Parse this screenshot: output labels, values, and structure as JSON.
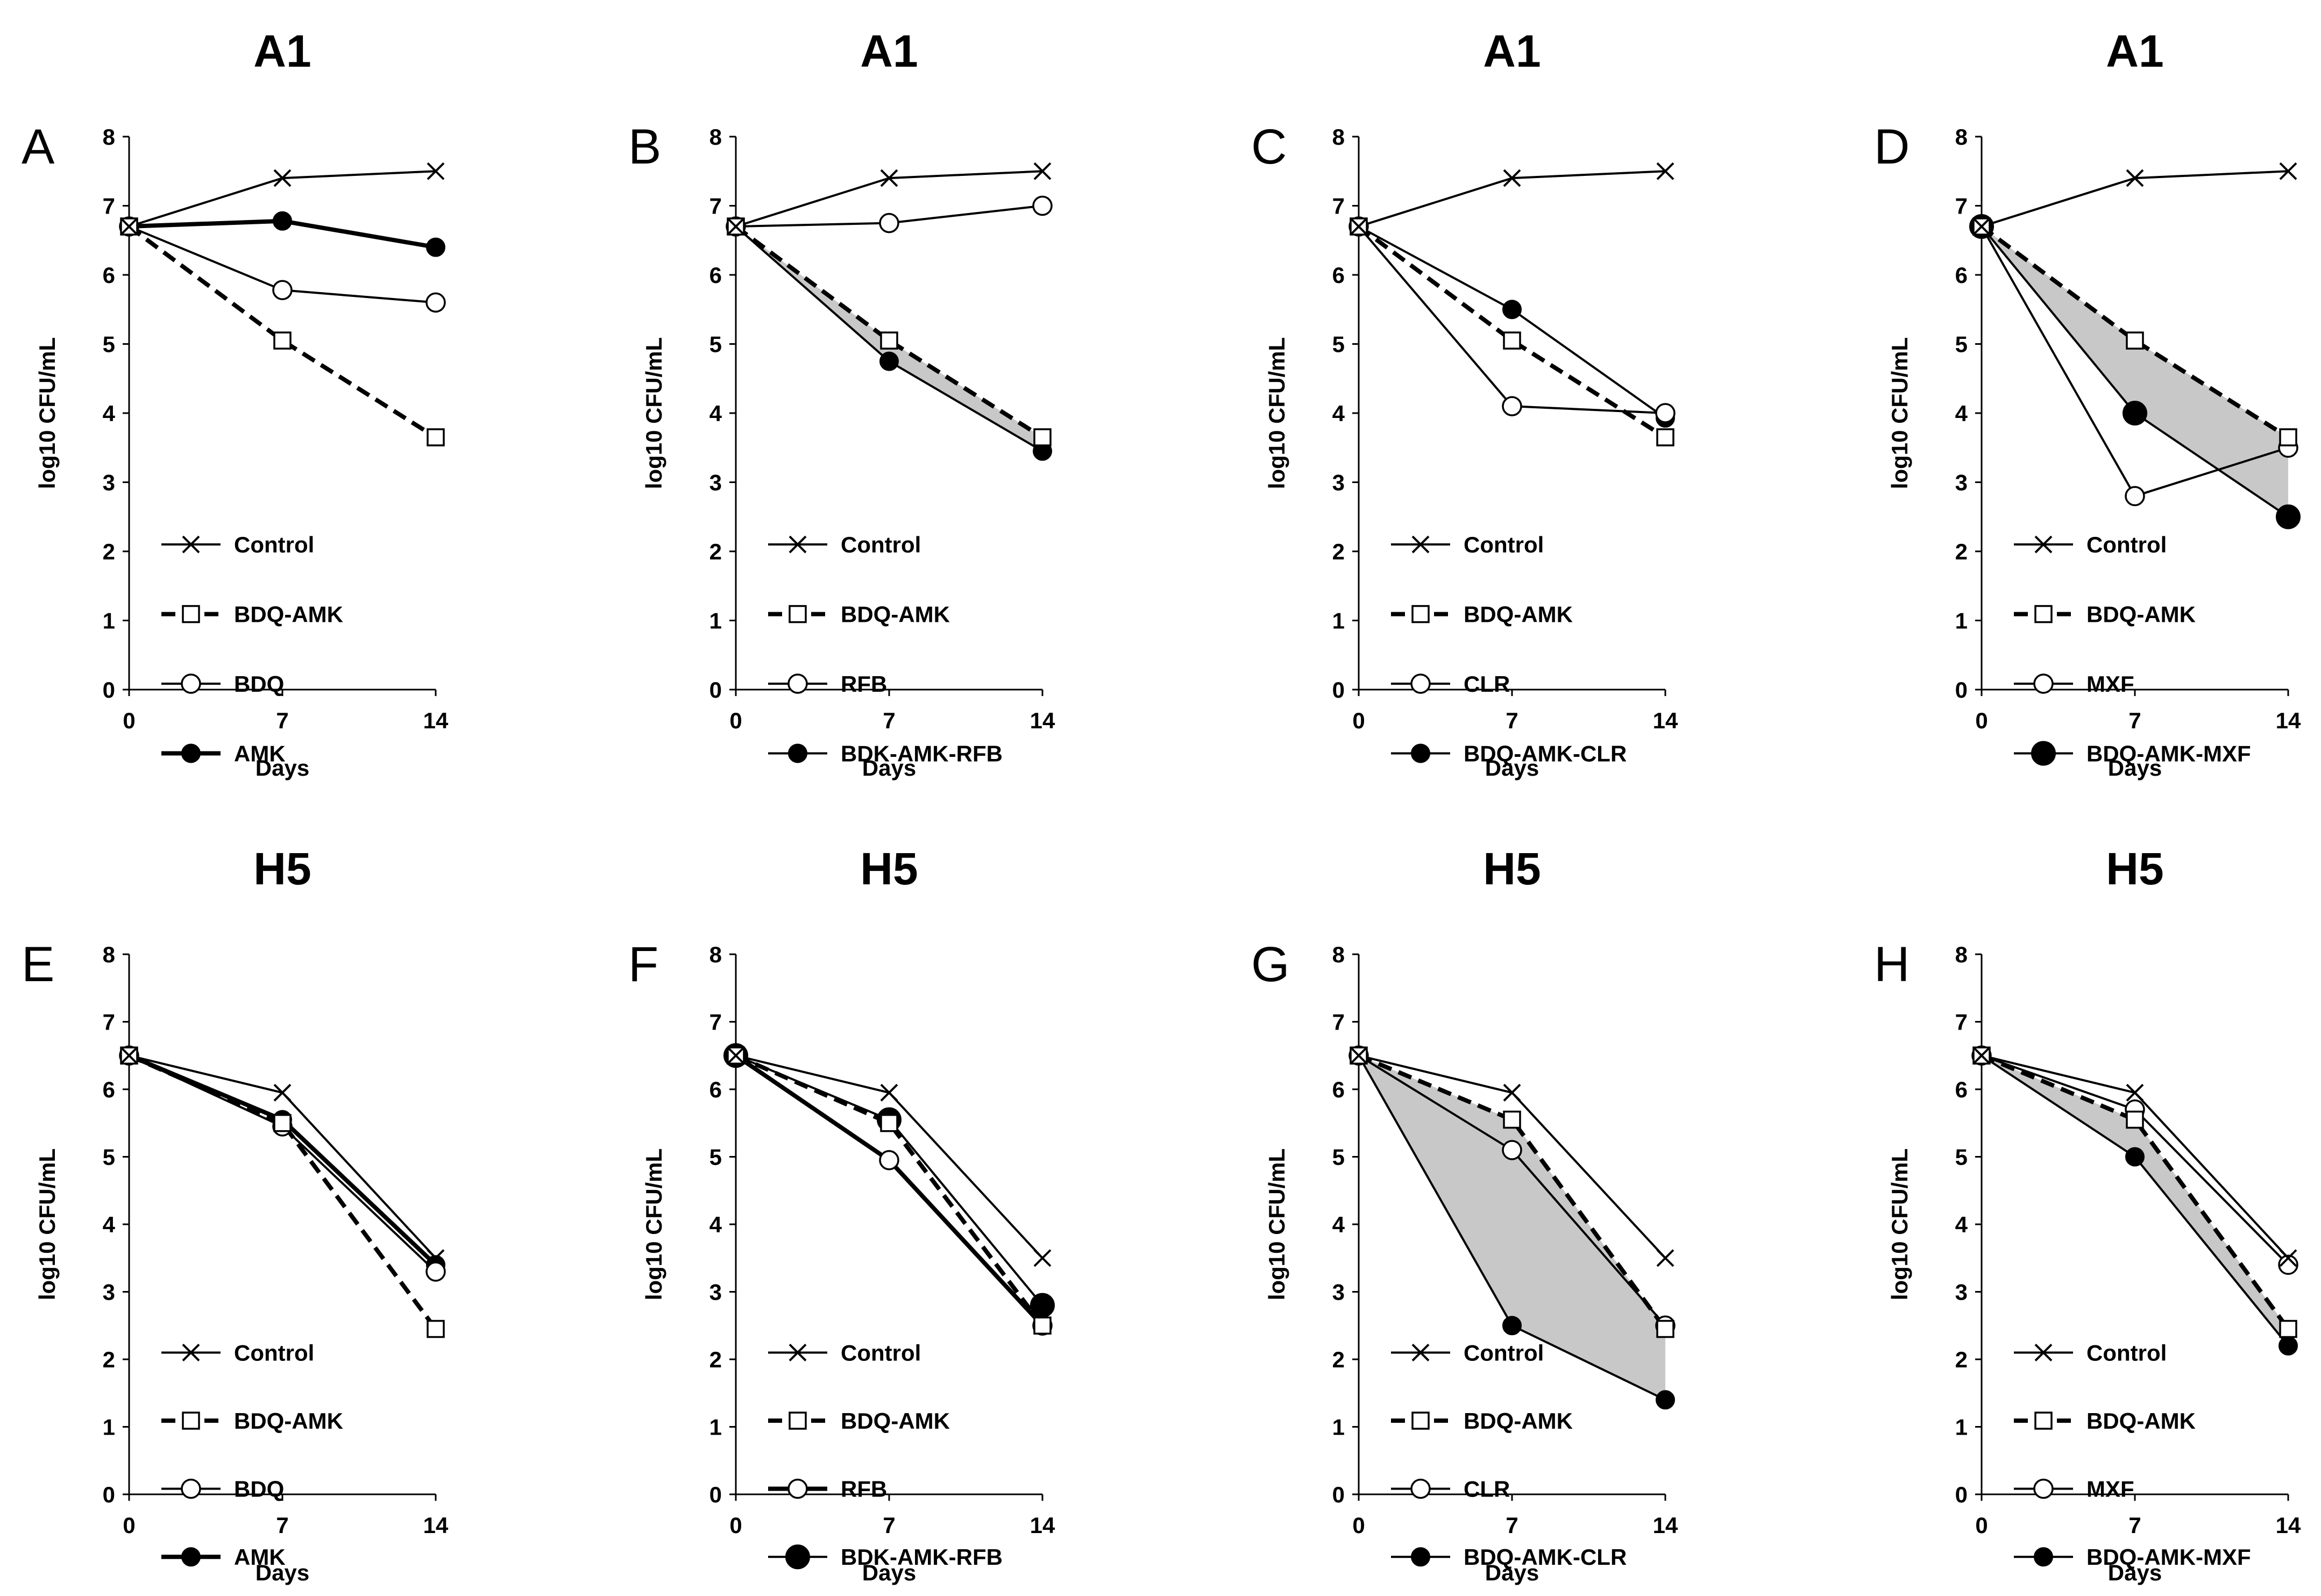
{
  "figure": {
    "colors": {
      "line": "#000000",
      "fill": "#c8c8c8",
      "background": "#ffffff"
    }
  },
  "chart_data": [
    {
      "panel": "A",
      "title": "A1",
      "type": "line",
      "x": [
        0,
        7,
        14
      ],
      "xlabel": "Days",
      "ylabel": "log10 CFU/mL",
      "xticks": [
        "0",
        "7",
        "14"
      ],
      "ylim": [
        0,
        8
      ],
      "yticks": [
        "0",
        "1",
        "2",
        "3",
        "4",
        "5",
        "6",
        "7",
        "8"
      ],
      "legend_position": "bottom-left",
      "shaded_between": null,
      "series": [
        {
          "name": "Control",
          "values": [
            6.7,
            7.4,
            7.5
          ],
          "marker": "x",
          "dash": false,
          "thick": false
        },
        {
          "name": "BDQ-AMK",
          "values": [
            6.7,
            5.05,
            3.65
          ],
          "marker": "square",
          "dash": true,
          "thick": true
        },
        {
          "name": "BDQ",
          "values": [
            6.7,
            5.78,
            5.6
          ],
          "marker": "circle",
          "dash": false,
          "thick": false
        },
        {
          "name": "AMK",
          "values": [
            6.7,
            6.78,
            6.4
          ],
          "marker": "dot",
          "dash": false,
          "thick": true
        }
      ]
    },
    {
      "panel": "B",
      "title": "A1",
      "type": "line",
      "x": [
        0,
        7,
        14
      ],
      "xlabel": "Days",
      "ylabel": "log10 CFU/mL",
      "xticks": [
        "0",
        "7",
        "14"
      ],
      "ylim": [
        0,
        8
      ],
      "yticks": [
        "0",
        "1",
        "2",
        "3",
        "4",
        "5",
        "6",
        "7",
        "8"
      ],
      "legend_position": "bottom-left",
      "shaded_between": [
        1,
        3
      ],
      "series": [
        {
          "name": "Control",
          "values": [
            6.7,
            7.4,
            7.5
          ],
          "marker": "x",
          "dash": false,
          "thick": false
        },
        {
          "name": "BDQ-AMK",
          "values": [
            6.7,
            5.05,
            3.65
          ],
          "marker": "square",
          "dash": true,
          "thick": true
        },
        {
          "name": "RFB",
          "values": [
            6.7,
            6.75,
            7.0
          ],
          "marker": "circle",
          "dash": false,
          "thick": false
        },
        {
          "name": "BDK-AMK-RFB",
          "values": [
            6.7,
            4.75,
            3.45
          ],
          "marker": "dot",
          "dash": false,
          "thick": false
        }
      ]
    },
    {
      "panel": "C",
      "title": "A1",
      "type": "line",
      "x": [
        0,
        7,
        14
      ],
      "xlabel": "Days",
      "ylabel": "log10 CFU/mL",
      "xticks": [
        "0",
        "7",
        "14"
      ],
      "ylim": [
        0,
        8
      ],
      "yticks": [
        "0",
        "1",
        "2",
        "3",
        "4",
        "5",
        "6",
        "7",
        "8"
      ],
      "legend_position": "bottom-left",
      "shaded_between": null,
      "series": [
        {
          "name": "Control",
          "values": [
            6.7,
            7.4,
            7.5
          ],
          "marker": "x",
          "dash": false,
          "thick": false
        },
        {
          "name": "BDQ-AMK",
          "values": [
            6.7,
            5.05,
            3.65
          ],
          "marker": "square",
          "dash": true,
          "thick": true
        },
        {
          "name": "CLR",
          "values": [
            6.7,
            4.1,
            4.0
          ],
          "marker": "circle",
          "dash": false,
          "thick": false
        },
        {
          "name": "BDQ-AMK-CLR",
          "values": [
            6.7,
            5.5,
            3.93
          ],
          "marker": "dot",
          "dash": false,
          "thick": false
        }
      ]
    },
    {
      "panel": "D",
      "title": "A1",
      "type": "line",
      "x": [
        0,
        7,
        14
      ],
      "xlabel": "Days",
      "ylabel": "log10 CFU/mL",
      "xticks": [
        "0",
        "7",
        "14"
      ],
      "ylim": [
        0,
        8
      ],
      "yticks": [
        "0",
        "1",
        "2",
        "3",
        "4",
        "5",
        "6",
        "7",
        "8"
      ],
      "legend_position": "bottom-left",
      "shaded_between": [
        1,
        3
      ],
      "series": [
        {
          "name": "Control",
          "values": [
            6.7,
            7.4,
            7.5
          ],
          "marker": "x",
          "dash": false,
          "thick": false
        },
        {
          "name": "BDQ-AMK",
          "values": [
            6.7,
            5.05,
            3.65
          ],
          "marker": "square",
          "dash": true,
          "thick": true
        },
        {
          "name": "MXF",
          "values": [
            6.7,
            2.8,
            3.5
          ],
          "marker": "circle",
          "dash": false,
          "thick": false
        },
        {
          "name": "BDQ-AMK-MXF",
          "values": [
            6.7,
            4.0,
            2.5
          ],
          "marker": "bigdot",
          "dash": false,
          "thick": false
        }
      ]
    },
    {
      "panel": "E",
      "title": "H5",
      "type": "line",
      "x": [
        0,
        7,
        14
      ],
      "xlabel": "Days",
      "ylabel": "log10 CFU/mL",
      "xticks": [
        "0",
        "7",
        "14"
      ],
      "ylim": [
        0,
        8
      ],
      "yticks": [
        "0",
        "1",
        "2",
        "3",
        "4",
        "5",
        "6",
        "7",
        "8"
      ],
      "legend_position": "bottom-left",
      "shaded_between": null,
      "series": [
        {
          "name": "Control",
          "values": [
            6.5,
            5.95,
            3.5
          ],
          "marker": "x",
          "dash": false,
          "thick": false
        },
        {
          "name": "BDQ-AMK",
          "values": [
            6.5,
            5.5,
            2.45
          ],
          "marker": "square",
          "dash": true,
          "thick": true
        },
        {
          "name": "BDQ",
          "values": [
            6.5,
            5.45,
            3.3
          ],
          "marker": "circle",
          "dash": false,
          "thick": false
        },
        {
          "name": "AMK",
          "values": [
            6.5,
            5.55,
            3.4
          ],
          "marker": "dot",
          "dash": false,
          "thick": true
        }
      ]
    },
    {
      "panel": "F",
      "title": "H5",
      "type": "line",
      "x": [
        0,
        7,
        14
      ],
      "xlabel": "Days",
      "ylabel": "log10 CFU/mL",
      "xticks": [
        "0",
        "7",
        "14"
      ],
      "ylim": [
        0,
        8
      ],
      "yticks": [
        "0",
        "1",
        "2",
        "3",
        "4",
        "5",
        "6",
        "7",
        "8"
      ],
      "legend_position": "bottom-left",
      "shaded_between": null,
      "series": [
        {
          "name": "Control",
          "values": [
            6.5,
            5.95,
            3.5
          ],
          "marker": "x",
          "dash": false,
          "thick": false
        },
        {
          "name": "BDQ-AMK",
          "values": [
            6.5,
            5.5,
            2.5
          ],
          "marker": "square",
          "dash": true,
          "thick": true
        },
        {
          "name": "RFB",
          "values": [
            6.5,
            4.95,
            2.5
          ],
          "marker": "circle",
          "dash": false,
          "thick": true
        },
        {
          "name": "BDK-AMK-RFB",
          "values": [
            6.5,
            5.55,
            2.8
          ],
          "marker": "bigdot",
          "dash": false,
          "thick": false
        }
      ]
    },
    {
      "panel": "G",
      "title": "H5",
      "type": "line",
      "x": [
        0,
        7,
        14
      ],
      "xlabel": "Days",
      "ylabel": "log10 CFU/mL",
      "xticks": [
        "0",
        "7",
        "14"
      ],
      "ylim": [
        0,
        8
      ],
      "yticks": [
        "0",
        "1",
        "2",
        "3",
        "4",
        "5",
        "6",
        "7",
        "8"
      ],
      "legend_position": "bottom-left",
      "shaded_between": [
        1,
        3
      ],
      "series": [
        {
          "name": "Control",
          "values": [
            6.5,
            5.95,
            3.5
          ],
          "marker": "x",
          "dash": false,
          "thick": false
        },
        {
          "name": "BDQ-AMK",
          "values": [
            6.5,
            5.55,
            2.45
          ],
          "marker": "square",
          "dash": true,
          "thick": true
        },
        {
          "name": "CLR",
          "values": [
            6.5,
            5.1,
            2.5
          ],
          "marker": "circle",
          "dash": false,
          "thick": false
        },
        {
          "name": "BDQ-AMK-CLR",
          "values": [
            6.5,
            2.5,
            1.4
          ],
          "marker": "dot",
          "dash": false,
          "thick": false
        }
      ]
    },
    {
      "panel": "H",
      "title": "H5",
      "type": "line",
      "x": [
        0,
        7,
        14
      ],
      "xlabel": "Days",
      "ylabel": "log10 CFU/mL",
      "xticks": [
        "0",
        "7",
        "14"
      ],
      "ylim": [
        0,
        8
      ],
      "yticks": [
        "0",
        "1",
        "2",
        "3",
        "4",
        "5",
        "6",
        "7",
        "8"
      ],
      "legend_position": "bottom-left",
      "shaded_between": [
        1,
        3
      ],
      "series": [
        {
          "name": "Control",
          "values": [
            6.5,
            5.95,
            3.5
          ],
          "marker": "x",
          "dash": false,
          "thick": false
        },
        {
          "name": "BDQ-AMK",
          "values": [
            6.5,
            5.55,
            2.45
          ],
          "marker": "square",
          "dash": true,
          "thick": true
        },
        {
          "name": "MXF",
          "values": [
            6.5,
            5.7,
            3.4
          ],
          "marker": "circle",
          "dash": false,
          "thick": false
        },
        {
          "name": "BDQ-AMK-MXF",
          "values": [
            6.5,
            5.0,
            2.2
          ],
          "marker": "dot",
          "dash": false,
          "thick": false
        }
      ]
    }
  ]
}
